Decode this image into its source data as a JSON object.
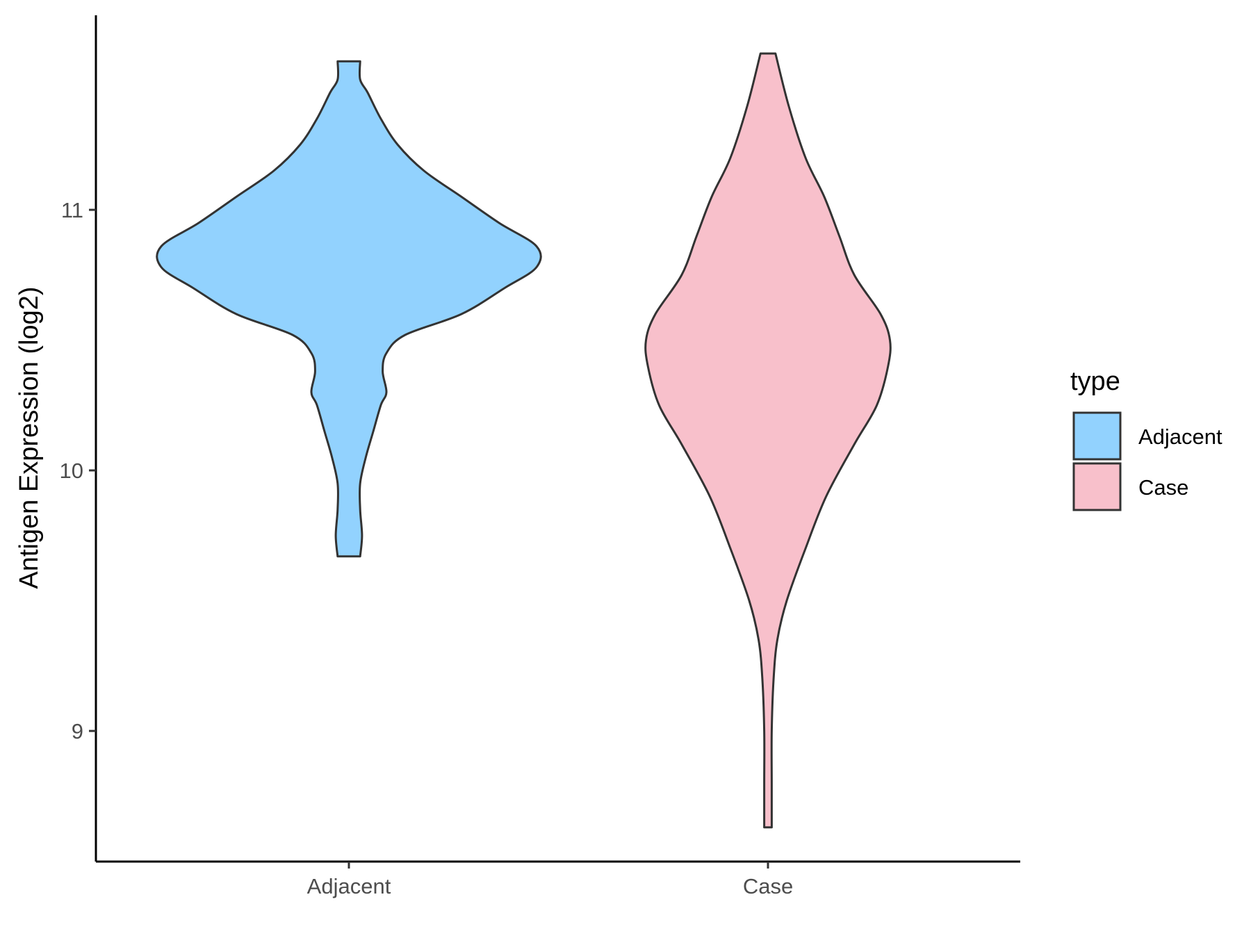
{
  "chart_data": {
    "type": "violin",
    "title": "",
    "xlabel": "",
    "ylabel": "Antigen Expression (log2)",
    "categories": [
      "Adjacent",
      "Case"
    ],
    "yticks": [
      9,
      10,
      11
    ],
    "ylim": [
      8.5,
      11.75
    ],
    "grid": false,
    "legend": {
      "title": "type",
      "placement": "right",
      "entries": [
        {
          "label": "Adjacent",
          "color": "#92d2fe"
        },
        {
          "label": "Case",
          "color": "#f8c0cb"
        }
      ]
    },
    "series": [
      {
        "category": "Adjacent",
        "color": "#92d2fe",
        "min": 9.67,
        "max": 11.57,
        "density_profile": [
          [
            9.67,
            0.06
          ],
          [
            9.75,
            0.07
          ],
          [
            9.85,
            0.06
          ],
          [
            9.95,
            0.06
          ],
          [
            10.05,
            0.09
          ],
          [
            10.15,
            0.13
          ],
          [
            10.25,
            0.17
          ],
          [
            10.3,
            0.2
          ],
          [
            10.38,
            0.18
          ],
          [
            10.45,
            0.2
          ],
          [
            10.52,
            0.3
          ],
          [
            10.6,
            0.6
          ],
          [
            10.7,
            0.83
          ],
          [
            10.78,
            1.0
          ],
          [
            10.86,
            1.0
          ],
          [
            10.95,
            0.8
          ],
          [
            11.05,
            0.6
          ],
          [
            11.15,
            0.4
          ],
          [
            11.25,
            0.26
          ],
          [
            11.35,
            0.17
          ],
          [
            11.45,
            0.1
          ],
          [
            11.5,
            0.06
          ],
          [
            11.57,
            0.06
          ]
        ]
      },
      {
        "category": "Case",
        "color": "#f8c0cb",
        "min": 8.63,
        "max": 11.6,
        "density_profile": [
          [
            8.63,
            0.02
          ],
          [
            8.8,
            0.02
          ],
          [
            9.0,
            0.02
          ],
          [
            9.2,
            0.03
          ],
          [
            9.35,
            0.05
          ],
          [
            9.5,
            0.1
          ],
          [
            9.7,
            0.2
          ],
          [
            9.9,
            0.31
          ],
          [
            10.1,
            0.46
          ],
          [
            10.25,
            0.58
          ],
          [
            10.4,
            0.64
          ],
          [
            10.5,
            0.65
          ],
          [
            10.6,
            0.6
          ],
          [
            10.75,
            0.46
          ],
          [
            10.9,
            0.38
          ],
          [
            11.05,
            0.3
          ],
          [
            11.2,
            0.2
          ],
          [
            11.4,
            0.11
          ],
          [
            11.6,
            0.04
          ]
        ]
      }
    ]
  }
}
